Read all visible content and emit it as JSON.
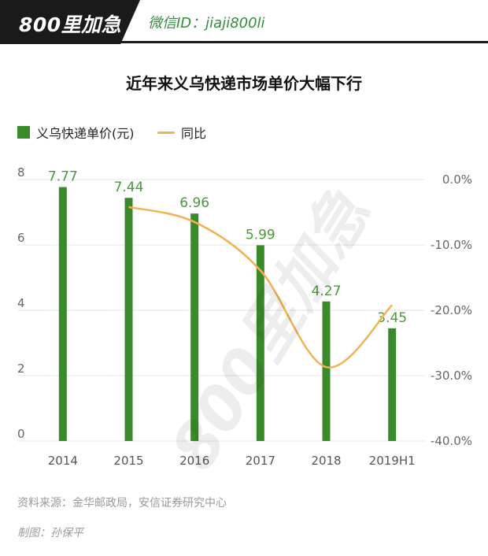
{
  "header": {
    "brand": "800里加急",
    "wechat": "微信ID：jiaji800li"
  },
  "watermark": "800里加急",
  "chart_data": {
    "type": "bar",
    "title": "近年来义乌快递市场单价大幅下行",
    "categories": [
      "2014",
      "2015",
      "2016",
      "2017",
      "2018",
      "2019H1"
    ],
    "series": [
      {
        "name": "义乌快递单价(元)",
        "type": "bar",
        "axis": "left",
        "values": [
          7.77,
          7.44,
          6.96,
          5.99,
          4.27,
          3.45
        ],
        "labels": [
          "7.77",
          "7.44",
          "6.96",
          "5.99",
          "4.27",
          "3.45"
        ],
        "color": "#3a8a2c",
        "label_color": "#4a9a3a"
      },
      {
        "name": "同比",
        "type": "line",
        "axis": "right",
        "smooth": true,
        "values": [
          null,
          -4.2,
          -6.5,
          -13.9,
          -28.7,
          -19.2
        ],
        "color": "#f2b24f"
      }
    ],
    "y_left": {
      "min": 0,
      "max": 8,
      "ticks": [
        "0",
        "2",
        "4",
        "6",
        "8"
      ],
      "tick_values": [
        0,
        2,
        4,
        6,
        8
      ]
    },
    "y_right": {
      "min": -40,
      "max": 0,
      "ticks": [
        "-40.0%",
        "-30.0%",
        "-20.0%",
        "-10.0%",
        "0.0%"
      ],
      "tick_values": [
        -40,
        -30,
        -20,
        -10,
        0
      ]
    },
    "grid": true,
    "legend_position": "top-left"
  },
  "source": "资料来源：金华邮政局，安信证券研究中心",
  "credit": "制图：孙保平"
}
